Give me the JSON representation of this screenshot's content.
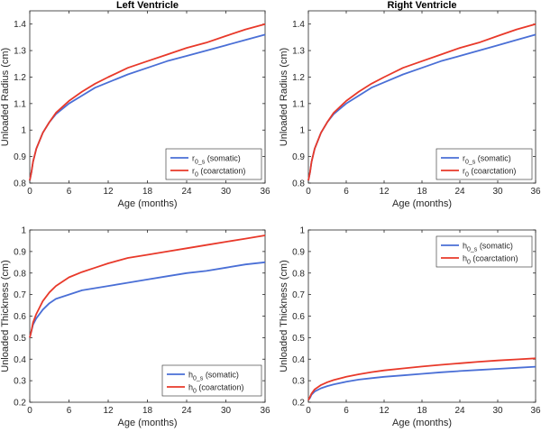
{
  "chart_data": [
    {
      "type": "line",
      "title": "Left Ventricle",
      "xlabel": "Age (months)",
      "ylabel": "Unloaded Radius (cm)",
      "xlim": [
        0,
        36
      ],
      "ylim": [
        0.8,
        1.45
      ],
      "xticks": [
        0,
        6,
        12,
        18,
        24,
        30,
        36
      ],
      "xtick_labels": [
        "0",
        "6",
        "12",
        "18",
        "24",
        "30",
        "36"
      ],
      "yticks": [
        0.8,
        0.9,
        1.0,
        1.1,
        1.2,
        1.3,
        1.4
      ],
      "ytick_labels": [
        "0.8",
        "0.9",
        "1",
        "1.1",
        "1.2",
        "1.3",
        "1.4"
      ],
      "legend_position": "bottom-right",
      "series": [
        {
          "name": "r0_s (somatic)",
          "label_base": "r",
          "label_sub": "0_s",
          "label_rest": " (somatic)",
          "color": "#4a6fd6",
          "x": [
            0,
            0.25,
            0.5,
            1,
            2,
            3,
            4,
            6,
            8,
            10,
            12,
            15,
            18,
            21,
            24,
            27,
            30,
            33,
            36
          ],
          "y": [
            0.81,
            0.84,
            0.88,
            0.93,
            0.99,
            1.03,
            1.06,
            1.1,
            1.13,
            1.16,
            1.18,
            1.21,
            1.235,
            1.26,
            1.28,
            1.3,
            1.32,
            1.34,
            1.36
          ]
        },
        {
          "name": "r0 (coarctation)",
          "label_base": "r",
          "label_sub": "0",
          "label_rest": " (coarctation)",
          "color": "#e8392a",
          "x": [
            0,
            0.25,
            0.5,
            1,
            2,
            3,
            4,
            6,
            8,
            10,
            12,
            15,
            18,
            21,
            24,
            27,
            30,
            33,
            36
          ],
          "y": [
            0.81,
            0.84,
            0.88,
            0.93,
            0.99,
            1.03,
            1.065,
            1.11,
            1.145,
            1.175,
            1.2,
            1.235,
            1.26,
            1.285,
            1.31,
            1.33,
            1.355,
            1.38,
            1.4
          ]
        }
      ]
    },
    {
      "type": "line",
      "title": "Right Ventricle",
      "xlabel": "Age (months)",
      "ylabel": "Unloaded Radius (cm)",
      "xlim": [
        0,
        36
      ],
      "ylim": [
        0.8,
        1.45
      ],
      "xticks": [
        0,
        6,
        12,
        18,
        24,
        30,
        36
      ],
      "xtick_labels": [
        "0",
        "6",
        "12",
        "18",
        "24",
        "30",
        "36"
      ],
      "yticks": [
        0.8,
        0.9,
        1.0,
        1.1,
        1.2,
        1.3,
        1.4
      ],
      "ytick_labels": [
        "0.8",
        "0.9",
        "1",
        "1.1",
        "1.2",
        "1.3",
        "1.4"
      ],
      "legend_position": "bottom-right",
      "series": [
        {
          "name": "r0_s (somatic)",
          "label_base": "r",
          "label_sub": "0_s",
          "label_rest": " (somatic)",
          "color": "#4a6fd6",
          "x": [
            0,
            0.25,
            0.5,
            1,
            2,
            3,
            4,
            6,
            8,
            10,
            12,
            15,
            18,
            21,
            24,
            27,
            30,
            33,
            36
          ],
          "y": [
            0.81,
            0.84,
            0.88,
            0.93,
            0.99,
            1.03,
            1.06,
            1.1,
            1.13,
            1.16,
            1.18,
            1.21,
            1.235,
            1.26,
            1.28,
            1.3,
            1.32,
            1.34,
            1.36
          ]
        },
        {
          "name": "r0 (coarctation)",
          "label_base": "r",
          "label_sub": "0",
          "label_rest": " (coarctation)",
          "color": "#e8392a",
          "x": [
            0,
            0.25,
            0.5,
            1,
            2,
            3,
            4,
            6,
            8,
            10,
            12,
            15,
            18,
            21,
            24,
            27,
            30,
            33,
            36
          ],
          "y": [
            0.81,
            0.84,
            0.88,
            0.93,
            0.99,
            1.03,
            1.065,
            1.11,
            1.145,
            1.175,
            1.2,
            1.235,
            1.26,
            1.285,
            1.31,
            1.33,
            1.355,
            1.38,
            1.4
          ]
        }
      ]
    },
    {
      "type": "line",
      "title": "",
      "xlabel": "Age (months)",
      "ylabel": "Unloaded Thickness (cm)",
      "xlim": [
        0,
        36
      ],
      "ylim": [
        0.2,
        1.0
      ],
      "xticks": [
        0,
        6,
        12,
        18,
        24,
        30,
        36
      ],
      "xtick_labels": [
        "0",
        "6",
        "12",
        "18",
        "24",
        "30",
        "36"
      ],
      "yticks": [
        0.2,
        0.3,
        0.4,
        0.5,
        0.6,
        0.7,
        0.8,
        0.9,
        1.0
      ],
      "ytick_labels": [
        "0.2",
        "0.3",
        "0.4",
        "0.5",
        "0.6",
        "0.7",
        "0.8",
        "0.9",
        "1"
      ],
      "legend_position": "bottom-right",
      "series": [
        {
          "name": "h0_s (somatic)",
          "label_base": "h",
          "label_sub": "0_s",
          "label_rest": " (somatic)",
          "color": "#4a6fd6",
          "x": [
            0,
            0.25,
            0.5,
            1,
            2,
            3,
            4,
            6,
            8,
            10,
            12,
            15,
            18,
            21,
            24,
            27,
            30,
            33,
            36
          ],
          "y": [
            0.5,
            0.53,
            0.56,
            0.59,
            0.63,
            0.66,
            0.68,
            0.7,
            0.72,
            0.73,
            0.74,
            0.755,
            0.77,
            0.785,
            0.8,
            0.81,
            0.825,
            0.84,
            0.85
          ]
        },
        {
          "name": "h0 (coarctation)",
          "label_base": "h",
          "label_sub": "0",
          "label_rest": " (coarctation)",
          "color": "#e8392a",
          "x": [
            0,
            0.25,
            0.5,
            1,
            2,
            3,
            4,
            6,
            8,
            10,
            12,
            15,
            18,
            21,
            24,
            27,
            30,
            33,
            36
          ],
          "y": [
            0.5,
            0.53,
            0.57,
            0.61,
            0.67,
            0.71,
            0.74,
            0.78,
            0.805,
            0.825,
            0.845,
            0.87,
            0.885,
            0.9,
            0.915,
            0.93,
            0.945,
            0.96,
            0.975
          ]
        }
      ]
    },
    {
      "type": "line",
      "title": "",
      "xlabel": "Age (months)",
      "ylabel": "Unloaded Thickness (cm)",
      "xlim": [
        0,
        36
      ],
      "ylim": [
        0.2,
        1.0
      ],
      "xticks": [
        0,
        6,
        12,
        18,
        24,
        30,
        36
      ],
      "xtick_labels": [
        "0",
        "6",
        "12",
        "18",
        "24",
        "30",
        "36"
      ],
      "yticks": [
        0.2,
        0.3,
        0.4,
        0.5,
        0.6,
        0.7,
        0.8,
        0.9,
        1.0
      ],
      "ytick_labels": [
        "0.2",
        "0.3",
        "0.4",
        "0.5",
        "0.6",
        "0.7",
        "0.8",
        "0.9",
        "1"
      ],
      "legend_position": "top-right",
      "series": [
        {
          "name": "h0_s (somatic)",
          "label_base": "h",
          "label_sub": "0_s",
          "label_rest": " (somatic)",
          "color": "#4a6fd6",
          "x": [
            0,
            0.25,
            0.5,
            1,
            2,
            3,
            4,
            6,
            8,
            10,
            12,
            15,
            18,
            21,
            24,
            27,
            30,
            33,
            36
          ],
          "y": [
            0.21,
            0.22,
            0.235,
            0.25,
            0.265,
            0.275,
            0.283,
            0.295,
            0.305,
            0.312,
            0.318,
            0.325,
            0.332,
            0.339,
            0.345,
            0.35,
            0.355,
            0.36,
            0.365
          ]
        },
        {
          "name": "h0 (coarctation)",
          "label_base": "h",
          "label_sub": "0",
          "label_rest": " (coarctation)",
          "color": "#e8392a",
          "x": [
            0,
            0.25,
            0.5,
            1,
            2,
            3,
            4,
            6,
            8,
            10,
            12,
            15,
            18,
            21,
            24,
            27,
            30,
            33,
            36
          ],
          "y": [
            0.21,
            0.225,
            0.24,
            0.26,
            0.28,
            0.293,
            0.303,
            0.318,
            0.33,
            0.34,
            0.348,
            0.357,
            0.366,
            0.374,
            0.381,
            0.388,
            0.394,
            0.399,
            0.404
          ]
        }
      ]
    }
  ]
}
